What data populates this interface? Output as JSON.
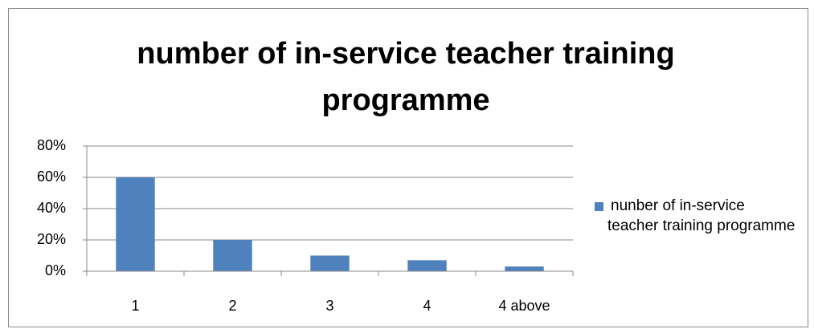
{
  "chart_data": {
    "type": "bar",
    "title": "number of in-service teacher training programme",
    "categories": [
      "1",
      "2",
      "3",
      "4",
      "4 above"
    ],
    "series": [
      {
        "name": "nunber of in-service teacher training programme",
        "color": "#4f81bd",
        "values": [
          60,
          20,
          10,
          7,
          3
        ]
      }
    ],
    "ylim": [
      0,
      80
    ],
    "yticks": [
      {
        "value": 0,
        "label": "0%"
      },
      {
        "value": 20,
        "label": "20%"
      },
      {
        "value": 40,
        "label": "40%"
      },
      {
        "value": 60,
        "label": "60%"
      },
      {
        "value": 80,
        "label": "80%"
      }
    ],
    "grid": true,
    "legend": "right"
  }
}
